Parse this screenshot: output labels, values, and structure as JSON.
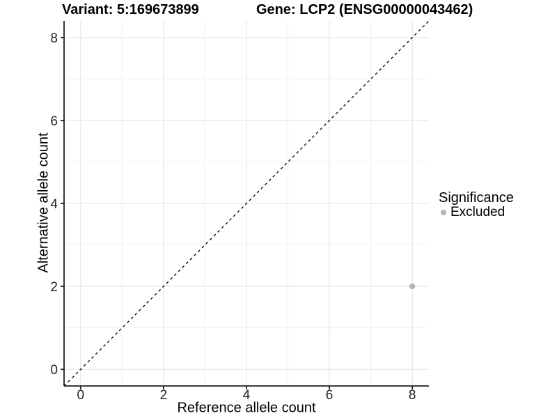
{
  "header": {
    "title_left": "Variant: 5:169673899",
    "title_right": "Gene: LCP2 (ENSG00000043462)"
  },
  "legend": {
    "title": "Significance",
    "items": [
      {
        "label": "Excluded",
        "color": "#b3b3b3"
      }
    ]
  },
  "chart_data": {
    "type": "scatter",
    "title": "Variant: 5:169673899  /  Gene: LCP2 (ENSG00000043462)",
    "xlabel": "Reference allele count",
    "ylabel": "Alternative allele count",
    "xlim": [
      -0.4,
      8.4
    ],
    "ylim": [
      -0.4,
      8.4
    ],
    "x_major_ticks": [
      0,
      2,
      4,
      6,
      8
    ],
    "y_major_ticks": [
      0,
      2,
      4,
      6,
      8
    ],
    "x_minor_ticks": [
      1,
      3,
      5,
      7
    ],
    "y_minor_ticks": [
      1,
      3,
      5,
      7
    ],
    "grid": true,
    "legend_position": "right",
    "reference_line": {
      "kind": "identity",
      "style": "dashed",
      "color": "#000000"
    },
    "series": [
      {
        "name": "Excluded",
        "color": "#b3b3b3",
        "points": [
          {
            "x": 8,
            "y": 2
          }
        ]
      }
    ]
  }
}
